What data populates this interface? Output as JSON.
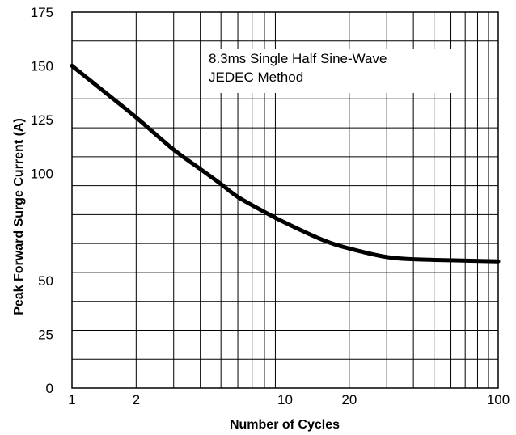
{
  "chart_data": {
    "type": "line",
    "title": "",
    "xlabel": "Number of Cycles",
    "ylabel": "Peak  Forward Surge Current  (A)",
    "x_scale": "log",
    "xlim": [
      1,
      100
    ],
    "ylim": [
      0,
      175
    ],
    "x_tick_labels": [
      "1",
      "2",
      "10",
      "20",
      "100"
    ],
    "y_tick_labels": [
      "0",
      "25",
      "50",
      "100",
      "125",
      "150",
      "175"
    ],
    "annotation": [
      "8.3ms Single Half Sine-Wave",
      "JEDEC Method"
    ],
    "grid": true,
    "series": [
      {
        "x": [
          1,
          1.5,
          2,
          3,
          4,
          5,
          6,
          8,
          10,
          15,
          20,
          30,
          40,
          60,
          100
        ],
        "y": [
          150,
          136,
          126,
          111,
          102,
          95,
          89,
          82,
          77,
          69,
          65,
          61,
          60,
          59.5,
          59
        ]
      }
    ]
  }
}
